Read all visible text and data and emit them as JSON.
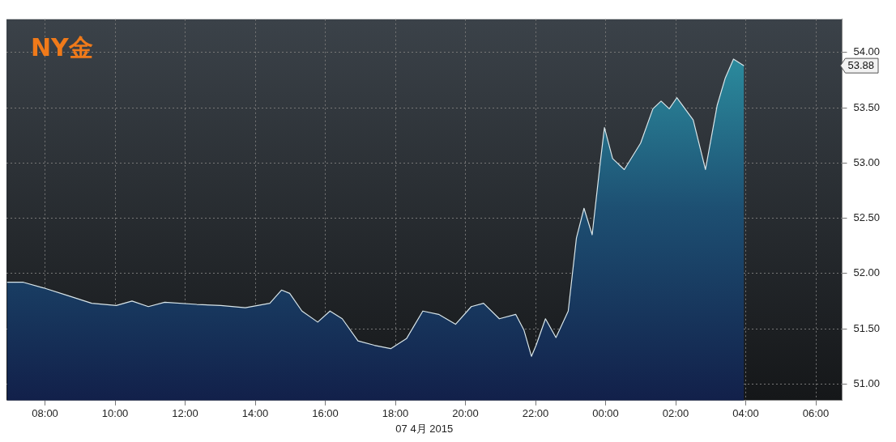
{
  "chart_data": {
    "type": "area",
    "title": "NY金",
    "xlabel": "07 4月 2015",
    "x": [
      "2015-04-07T06:55",
      "2015-04-07T07:23",
      "2015-04-07T07:57",
      "2015-04-07T08:39",
      "2015-04-07T09:20",
      "2015-04-07T10:02",
      "2015-04-07T10:29",
      "2015-04-07T10:57",
      "2015-04-07T11:25",
      "2015-04-07T12:20",
      "2015-04-07T13:01",
      "2015-04-07T13:43",
      "2015-04-07T14:25",
      "2015-04-07T14:45",
      "2015-04-07T14:59",
      "2015-04-07T15:20",
      "2015-04-07T15:47",
      "2015-04-07T16:08",
      "2015-04-07T16:29",
      "2015-04-07T16:56",
      "2015-04-07T17:24",
      "2015-04-07T17:52",
      "2015-04-07T18:19",
      "2015-04-07T18:47",
      "2015-04-07T19:14",
      "2015-04-07T19:43",
      "2015-04-07T20:10",
      "2015-04-07T20:31",
      "2015-04-07T20:58",
      "2015-04-07T21:26",
      "2015-04-07T21:40",
      "2015-04-07T21:53",
      "2015-04-07T22:01",
      "2015-04-07T22:17",
      "2015-04-07T22:35",
      "2015-04-07T22:56",
      "2015-04-07T23:10",
      "2015-04-07T23:23",
      "2015-04-07T23:37",
      "2015-04-07T23:51",
      "2015-04-07T23:58",
      "2015-04-08T00:12",
      "2015-04-08T00:32",
      "2015-04-08T01:00",
      "2015-04-08T01:21",
      "2015-04-08T01:35",
      "2015-04-08T01:49",
      "2015-04-08T02:02",
      "2015-04-08T02:30",
      "2015-04-08T02:51",
      "2015-04-08T03:11",
      "2015-04-08T03:25",
      "2015-04-08T03:39",
      "2015-04-08T03:57"
    ],
    "series": [
      {
        "color": "#d9e6ea",
        "values": [
          51.92,
          51.92,
          51.87,
          51.8,
          51.73,
          51.71,
          51.75,
          51.7,
          51.74,
          51.72,
          51.71,
          51.69,
          51.73,
          51.85,
          51.82,
          51.66,
          51.56,
          51.66,
          51.59,
          51.39,
          51.35,
          51.32,
          51.41,
          51.66,
          51.63,
          51.54,
          51.7,
          51.73,
          51.59,
          51.63,
          51.49,
          51.25,
          51.35,
          51.59,
          51.42,
          51.66,
          52.32,
          52.59,
          52.35,
          53.01,
          53.32,
          53.04,
          52.94,
          53.18,
          53.49,
          53.56,
          53.49,
          53.59,
          53.39,
          52.94,
          53.52,
          53.77,
          53.94,
          53.88
        ]
      }
    ],
    "xlim": [
      "2015-04-07T06:54",
      "2015-04-08T06:45"
    ],
    "xticks": [
      {
        "value": "2015-04-07T08:00",
        "label": "08:00"
      },
      {
        "value": "2015-04-07T10:00",
        "label": "10:00"
      },
      {
        "value": "2015-04-07T12:00",
        "label": "12:00"
      },
      {
        "value": "2015-04-07T14:00",
        "label": "14:00"
      },
      {
        "value": "2015-04-07T16:00",
        "label": "16:00"
      },
      {
        "value": "2015-04-07T18:00",
        "label": "18:00"
      },
      {
        "value": "2015-04-07T20:00",
        "label": "20:00"
      },
      {
        "value": "2015-04-07T22:00",
        "label": "22:00"
      },
      {
        "value": "2015-04-08T00:00",
        "label": "00:00"
      },
      {
        "value": "2015-04-08T02:00",
        "label": "02:00"
      },
      {
        "value": "2015-04-08T04:00",
        "label": "04:00"
      },
      {
        "value": "2015-04-08T06:00",
        "label": "06:00"
      }
    ],
    "ylim": [
      50.85,
      54.3
    ],
    "yticks": [
      {
        "value": 51,
        "label": "51.00"
      },
      {
        "value": 51.5,
        "label": "51.50"
      },
      {
        "value": 52,
        "label": "52.00"
      },
      {
        "value": 52.5,
        "label": "52.50"
      },
      {
        "value": 53,
        "label": "53.00"
      },
      {
        "value": 53.5,
        "label": "53.50"
      },
      {
        "value": 54,
        "label": "54.00"
      }
    ],
    "annotations": [
      "53.88"
    ],
    "grid": true,
    "legend": false,
    "marker": "none",
    "line_style": "solid"
  }
}
